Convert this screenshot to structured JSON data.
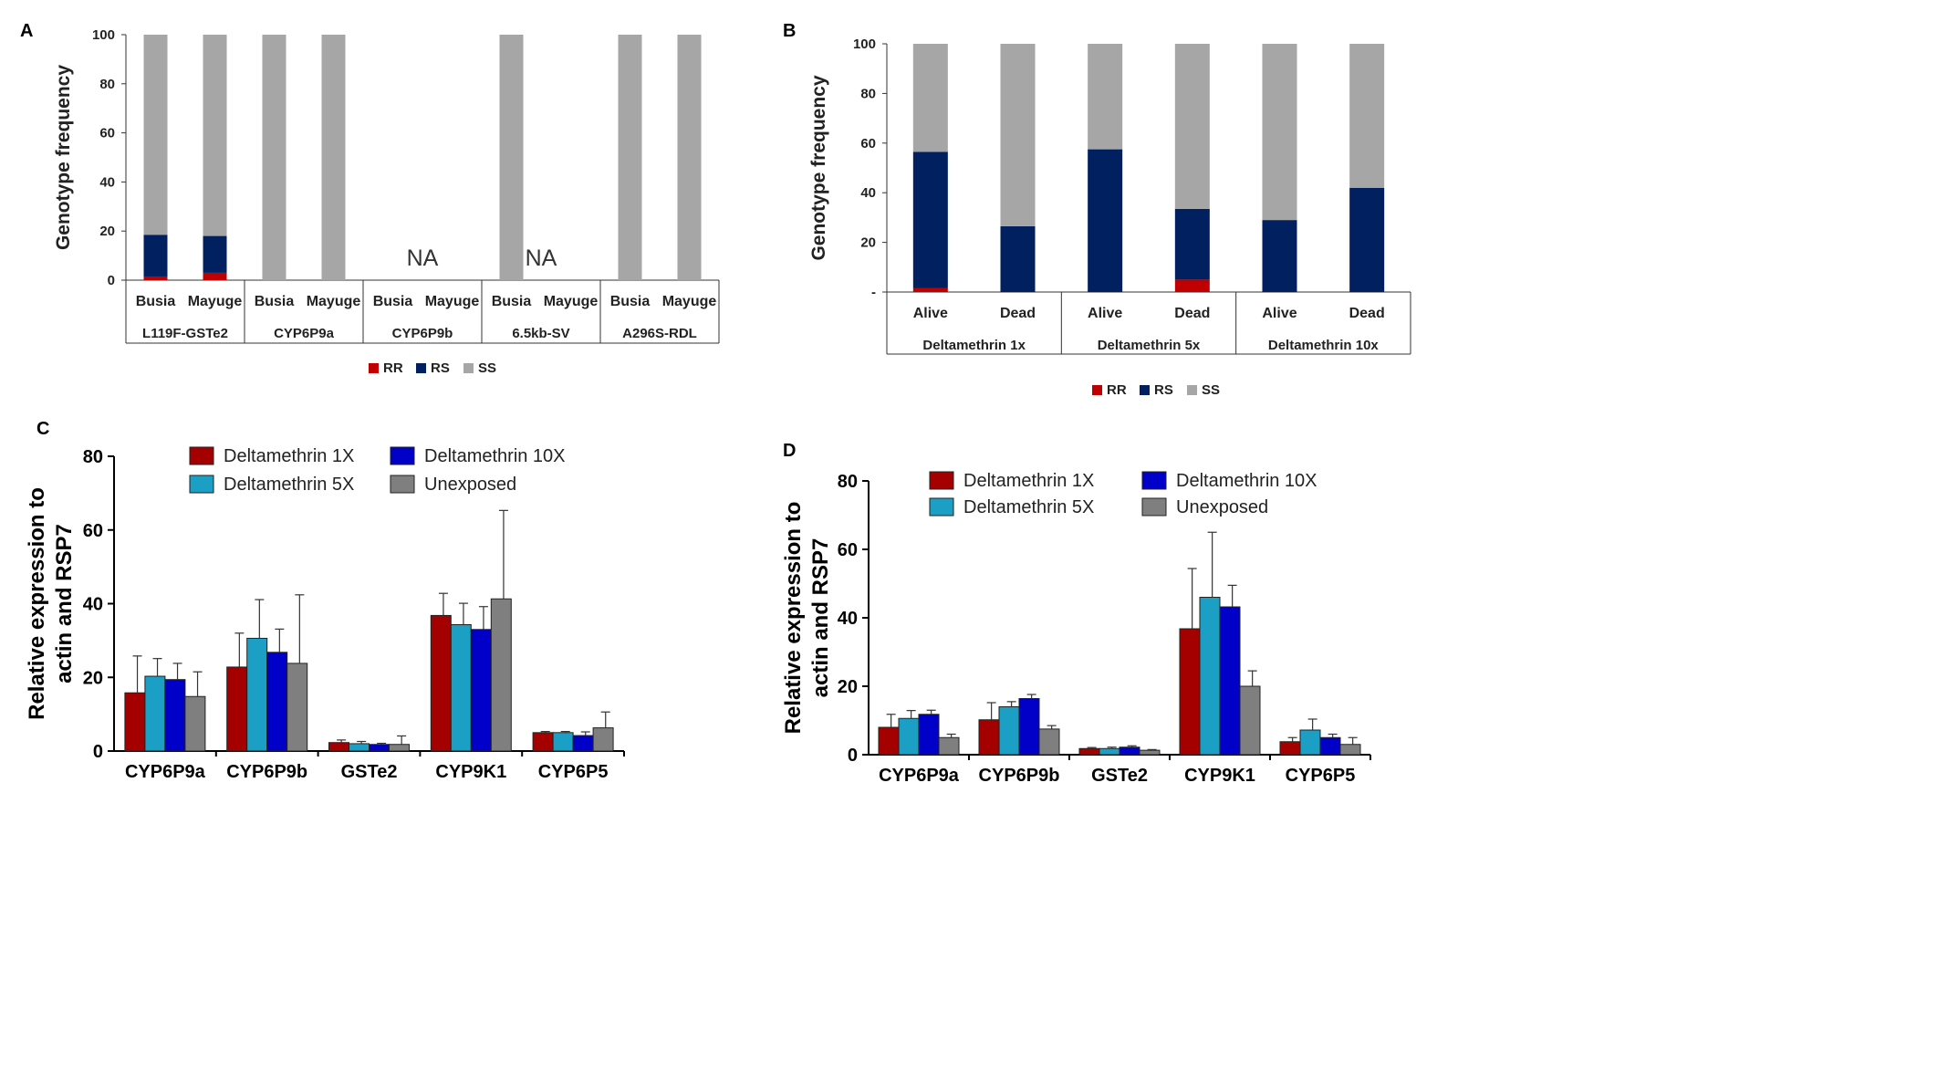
{
  "chart_data": [
    {
      "panel": "A",
      "type": "bar",
      "stacked": true,
      "ylabel": "Genotype frequency",
      "ylim": [
        0,
        100
      ],
      "yticks": [
        "0",
        "20",
        "40",
        "60",
        "80",
        "100"
      ],
      "categories": [
        "Busia",
        "Mayuge",
        "Busia",
        "Mayuge",
        "Busia",
        "Mayuge",
        "Busia",
        "Mayuge",
        "Busia",
        "Mayuge"
      ],
      "groups": [
        "L119F-GSTe2",
        "CYP6P9a",
        "CYP6P9b",
        "6.5kb-SV",
        "A296S-RDL"
      ],
      "series": [
        {
          "name": "RR",
          "color": "#c00000",
          "values": [
            1.5,
            3,
            0,
            0,
            null,
            null,
            0,
            0,
            0,
            0
          ]
        },
        {
          "name": "RS",
          "color": "#002060",
          "values": [
            17,
            15,
            0,
            0,
            null,
            null,
            0,
            0,
            0,
            0
          ]
        },
        {
          "name": "SS",
          "color": "#a6a6a6",
          "values": [
            81.5,
            82,
            100,
            100,
            null,
            null,
            100,
            0,
            100,
            100
          ]
        }
      ],
      "annotations": [
        {
          "text": "NA",
          "group": "CYP6P9b"
        },
        {
          "text": "NA",
          "group": "6.5kb-SV"
        }
      ],
      "legend": [
        "RR",
        "RS",
        "SS"
      ]
    },
    {
      "panel": "B",
      "type": "bar",
      "stacked": true,
      "ylabel": "Genotype frequency",
      "ylim": [
        0,
        100
      ],
      "yticks": [
        "-",
        "20",
        "40",
        "60",
        "80",
        "100"
      ],
      "categories": [
        "Alive",
        "Dead",
        "Alive",
        "Dead",
        "Alive",
        "Dead"
      ],
      "groups": [
        "Deltamethrin 1x",
        "Deltamethrin 5x",
        "Deltamethrin 10x"
      ],
      "series": [
        {
          "name": "RR",
          "color": "#c00000",
          "values": [
            1.5,
            0,
            0,
            5,
            0,
            0
          ]
        },
        {
          "name": "RS",
          "color": "#002060",
          "values": [
            55,
            26.5,
            57.5,
            28.5,
            29,
            42
          ]
        },
        {
          "name": "SS",
          "color": "#a6a6a6",
          "values": [
            43.5,
            73.5,
            42.5,
            66.5,
            71,
            58
          ]
        }
      ],
      "legend": [
        "RR",
        "RS",
        "SS"
      ]
    },
    {
      "panel": "C",
      "type": "bar",
      "ylabel_lines": [
        "Relative expression to",
        "actin and RSP7"
      ],
      "ylim": [
        0,
        80
      ],
      "yticks": [
        "0",
        "20",
        "40",
        "60",
        "80"
      ],
      "categories": [
        "CYP6P9a",
        "CYP6P9b",
        "GSTe2",
        "CYP9K1",
        "CYP6P5"
      ],
      "series": [
        {
          "name": "Deltamethrin 1X",
          "color": "#a50000",
          "values": [
            15.8,
            22.8,
            2.3,
            36.8,
            5
          ],
          "errors": [
            10,
            9.2,
            0.7,
            6,
            0.3
          ]
        },
        {
          "name": "Deltamethrin 5X",
          "color": "#1b9fc4",
          "values": [
            20.3,
            30.6,
            2,
            34.3,
            5
          ],
          "errors": [
            4.8,
            10.5,
            0.6,
            5.8,
            0.3
          ]
        },
        {
          "name": "Deltamethrin 10X",
          "color": "#0000c8",
          "values": [
            19.4,
            26.8,
            1.8,
            33,
            4.2
          ],
          "errors": [
            4.4,
            6.3,
            0.3,
            6.2,
            1
          ]
        },
        {
          "name": "Unexposed",
          "color": "#7f7f7f",
          "values": [
            14.8,
            23.8,
            1.8,
            41.3,
            6.3
          ],
          "errors": [
            6.7,
            18.6,
            2.3,
            24,
            4.3
          ]
        }
      ],
      "legend": [
        "Deltamethrin 1X",
        "Deltamethrin 10X",
        "Deltamethrin 5X",
        "Unexposed"
      ]
    },
    {
      "panel": "D",
      "type": "bar",
      "ylabel_lines": [
        "Relative expression to",
        "actin and RSP7"
      ],
      "ylim": [
        0,
        80
      ],
      "yticks": [
        "0",
        "20",
        "40",
        "60",
        "80"
      ],
      "categories": [
        "CYP6P9a",
        "CYP6P9b",
        "GSTe2",
        "CYP9K1",
        "CYP6P5"
      ],
      "series": [
        {
          "name": "Deltamethrin 1X",
          "color": "#a50000",
          "values": [
            8,
            10.2,
            1.8,
            36.8,
            3.8
          ],
          "errors": [
            3.8,
            5,
            0.3,
            17.6,
            1.2
          ]
        },
        {
          "name": "Deltamethrin 5X",
          "color": "#1b9fc4",
          "values": [
            10.6,
            14,
            1.8,
            46,
            7.2
          ],
          "errors": [
            2.3,
            1.5,
            0.4,
            19,
            3.2
          ]
        },
        {
          "name": "Deltamethrin 10X",
          "color": "#0000c8",
          "values": [
            11.8,
            16.4,
            2.2,
            43.2,
            5
          ],
          "errors": [
            1.2,
            1.2,
            0.4,
            6.3,
            1
          ]
        },
        {
          "name": "Unexposed",
          "color": "#7f7f7f",
          "values": [
            5,
            7.5,
            1.3,
            20,
            3
          ],
          "errors": [
            1,
            1,
            0.2,
            4.5,
            2
          ]
        }
      ],
      "legend": [
        "Deltamethrin 1X",
        "Deltamethrin 10X",
        "Deltamethrin 5X",
        "Unexposed"
      ]
    }
  ]
}
